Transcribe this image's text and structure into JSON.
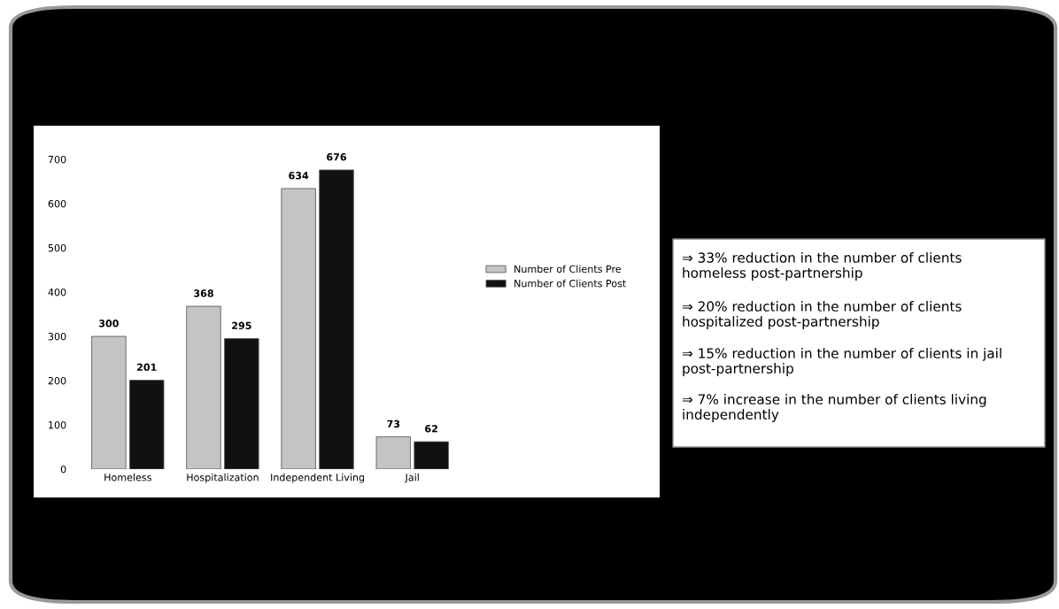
{
  "chart_data": [
    {
      "type": "bar",
      "categories": [
        "Homeless",
        "Hospitalization",
        "Independent Living",
        "Jail"
      ],
      "series": [
        {
          "name": "Number of Clients Pre",
          "color": "#c4c4c4",
          "values": [
            300,
            368,
            634,
            73
          ]
        },
        {
          "name": "Number of Clients Post",
          "color": "#111111",
          "values": [
            201,
            295,
            676,
            62
          ]
        }
      ],
      "ylim": [
        0,
        700
      ],
      "yticks": [
        0,
        100,
        200,
        300,
        400,
        500,
        600,
        700
      ],
      "data_labels": true,
      "legend": "right",
      "grid": false
    },
    {
      "type": "other",
      "annotations": [
        "⇒ 33% reduction in the number of clients homeless post-partnership",
        "⇒ 20% reduction in the number of clients hospitalized post-partnership",
        "⇒ 15% reduction in the number of clients in jail post-partnership",
        "⇒ 7% increase in the number of clients living independently"
      ]
    }
  ]
}
